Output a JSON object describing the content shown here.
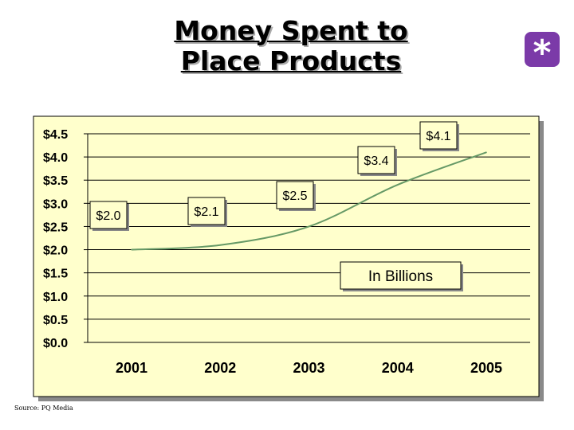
{
  "title_line1": "Money Spent to",
  "title_line2": "Place Products",
  "badge_symbol": "*",
  "source": "Source: PQ Media",
  "colors": {
    "plot_background": "#ffffcc",
    "line": "#669966",
    "badge": "#7b3aa8"
  },
  "chart_data": {
    "type": "line",
    "x": [
      "2001",
      "2002",
      "2003",
      "2004",
      "2005"
    ],
    "series": [
      {
        "values": [
          2.0,
          2.1,
          2.5,
          3.4,
          4.1
        ]
      }
    ],
    "data_labels": [
      "$2.0",
      "$2.1",
      "$2.5",
      "$3.4",
      "$4.1"
    ],
    "y_ticks": [
      0.0,
      0.5,
      1.0,
      1.5,
      2.0,
      2.5,
      3.0,
      3.5,
      4.0,
      4.5
    ],
    "y_tick_labels": [
      "$0.0",
      "$0.5",
      "$1.0",
      "$1.5",
      "$2.0",
      "$2.5",
      "$3.0",
      "$3.5",
      "$4.0",
      "$4.5"
    ],
    "ylim": [
      0,
      4.5
    ],
    "grid": true,
    "annotation": "In Billions"
  }
}
